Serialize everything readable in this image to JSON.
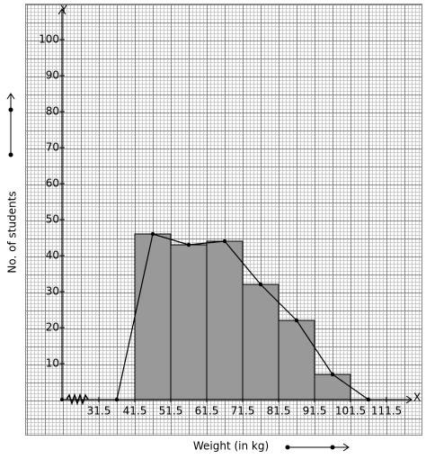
{
  "chart_data": {
    "type": "histogram",
    "x_label": "Weight (in kg)",
    "y_label": "No. of students",
    "x_axis_name": "X",
    "y_axis_name": "Y",
    "bins": [
      41.5,
      51.5,
      61.5,
      71.5,
      81.5,
      91.5,
      101.5
    ],
    "values": [
      46,
      43,
      44,
      32,
      22,
      7
    ],
    "color": "#999999",
    "polygon": {
      "x": [
        36.5,
        46.5,
        56.5,
        66.5,
        76.5,
        86.5,
        96.5,
        106.5
      ],
      "values": [
        0,
        46,
        43,
        44,
        32,
        22,
        7,
        0
      ],
      "color": "#000000"
    },
    "xlim": [
      21.25,
      118.5
    ],
    "ylim": [
      0,
      108.5
    ],
    "xticks": [
      31.5,
      41.5,
      51.5,
      61.5,
      71.5,
      81.5,
      91.5,
      101.5,
      111.5
    ],
    "yticks": [
      10,
      20,
      30,
      40,
      50,
      60,
      70,
      80,
      90,
      100
    ]
  }
}
